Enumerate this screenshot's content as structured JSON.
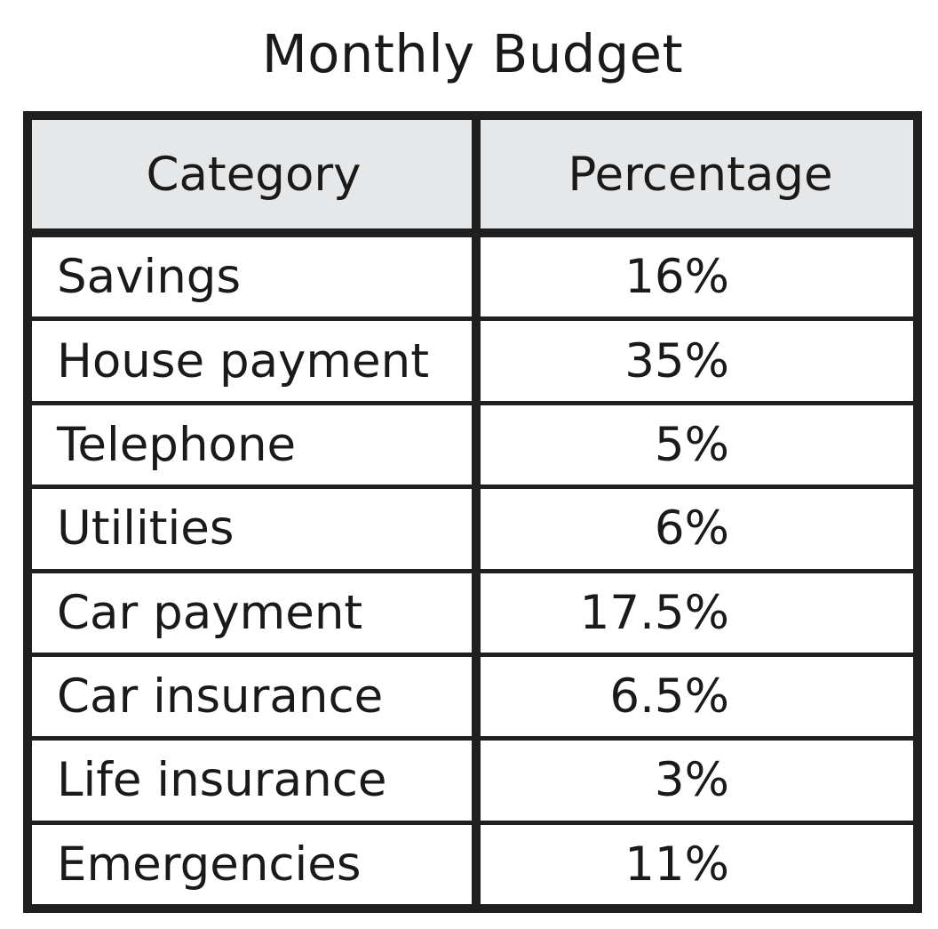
{
  "chart_data": {
    "type": "table",
    "title": "Monthly Budget",
    "columns": [
      "Category",
      "Percentage"
    ],
    "rows": [
      {
        "category": "Savings",
        "percentage": "16%"
      },
      {
        "category": "House payment",
        "percentage": "35%"
      },
      {
        "category": "Telephone",
        "percentage": "5%"
      },
      {
        "category": "Utilities",
        "percentage": "6%"
      },
      {
        "category": "Car payment",
        "percentage": "17.5%"
      },
      {
        "category": "Car insurance",
        "percentage": "6.5%"
      },
      {
        "category": "Life insurance",
        "percentage": "3%"
      },
      {
        "category": "Emergencies",
        "percentage": "11%"
      }
    ],
    "values": [
      16,
      35,
      5,
      6,
      17.5,
      6.5,
      3,
      11
    ],
    "header_color": "#e6e7e8",
    "border_color": "#1f1f1f"
  }
}
